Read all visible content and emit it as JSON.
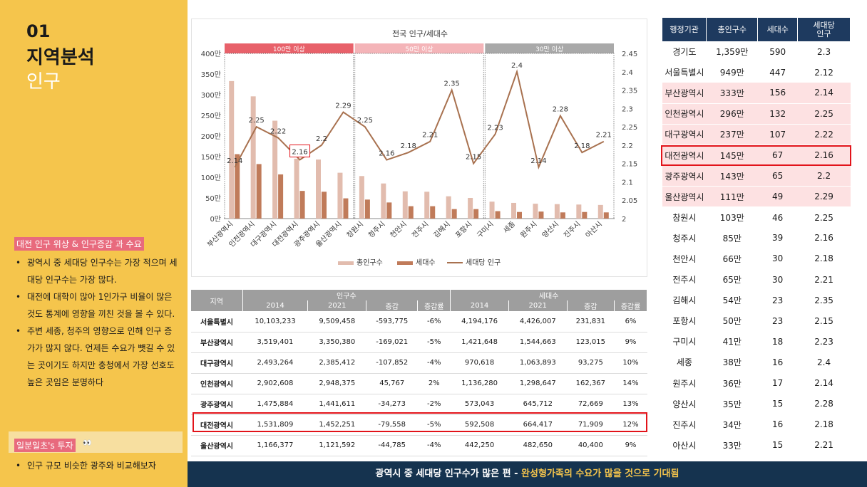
{
  "left": {
    "number": "01",
    "title": "지역분석",
    "subtitle": "인구",
    "issue_label": "대전 인구 위상 & 인구증감 과 수요",
    "bullets": [
      "광역시 중 세대당 인구수는 가장 적으며 세대당 인구수는 가장 많다.",
      "대전에 대학이 많아 1인가구 비율이 많은 것도 통계에 영향을 끼친 것을 볼 수 있다.",
      "주변 세종, 청주의 영향으로 인해 인구 증가가 많지 않다. 언제든 수요가 뺏길 수 있는 곳이기도 하지만 충청에서 가장 선호도 높은 곳임은 분명하다"
    ],
    "invest_label": "일분일초's 투자",
    "invest_eyes": "👀",
    "invest_bullet": "인구 규모 비슷한 광주와 비교해보자"
  },
  "chart_data": {
    "type": "bar",
    "title": "전국 인구/세대수",
    "categories": [
      "부산광역시",
      "인천광역시",
      "대구광역시",
      "대전광역시",
      "광주광역시",
      "울산광역시",
      "창원시",
      "청주시",
      "천안시",
      "전주시",
      "김해시",
      "포항시",
      "구미시",
      "세종",
      "원주시",
      "양산시",
      "진주시",
      "아산시"
    ],
    "series": [
      {
        "name": "총인구수",
        "values": [
          333,
          296,
          237,
          145,
          143,
          111,
          103,
          85,
          66,
          65,
          54,
          50,
          41,
          38,
          36,
          35,
          34,
          33
        ],
        "color": "#e2bcae"
      },
      {
        "name": "세대수",
        "values": [
          156,
          132,
          107,
          67,
          65,
          49,
          46,
          39,
          30,
          30,
          23,
          23,
          18,
          16,
          17,
          15,
          16,
          15
        ],
        "color": "#c07b5a"
      },
      {
        "name": "세대당 인구",
        "type": "line",
        "axis": "right",
        "values": [
          2.14,
          2.25,
          2.22,
          2.16,
          2.2,
          2.29,
          2.25,
          2.16,
          2.18,
          2.21,
          2.35,
          2.15,
          2.23,
          2.4,
          2.14,
          2.28,
          2.18,
          2.21
        ],
        "labels": [
          "2.14",
          "2.25",
          "2.22",
          "2.16",
          "2.2",
          "2.29",
          "2.25",
          "2.16",
          "2.18",
          "2.21",
          "2.35",
          "2.15",
          "2.23",
          "2.4",
          "2.14",
          "2.28",
          "2.18",
          "2.21"
        ],
        "color": "#a8714f"
      }
    ],
    "ylim": [
      0,
      400
    ],
    "yticks": [
      "0만",
      "50만",
      "100만",
      "150만",
      "200만",
      "250만",
      "300만",
      "350만",
      "400만"
    ],
    "y2lim": [
      2,
      2.45
    ],
    "y2ticks": [
      "2",
      "2.05",
      "2.1",
      "2.15",
      "2.2",
      "2.25",
      "2.3",
      "2.35",
      "2.4",
      "2.45"
    ],
    "groups": [
      {
        "label": "100만 이상",
        "from": 0,
        "to": 5,
        "color": "#e8616a"
      },
      {
        "label": "50만 이상",
        "from": 6,
        "to": 11,
        "color": "#f4b4b8"
      },
      {
        "label": "30만 이상",
        "from": 12,
        "to": 17,
        "color": "#a9a9a9"
      }
    ],
    "highlight_index": 3,
    "legend": [
      "총인구수",
      "세대수",
      "세대당 인구"
    ],
    "legend_position": "bottom"
  },
  "bottom_table": {
    "region_header": "지역",
    "group1": "인구수",
    "group2": "세대수",
    "subheaders": [
      "2014",
      "2021",
      "증감",
      "증감률",
      "2014",
      "2021",
      "증감",
      "증감률"
    ],
    "rows": [
      [
        "서울특별시",
        "10,103,233",
        "9,509,458",
        "-593,775",
        "-6%",
        "4,194,176",
        "4,426,007",
        "231,831",
        "6%"
      ],
      [
        "부산광역시",
        "3,519,401",
        "3,350,380",
        "-169,021",
        "-5%",
        "1,421,648",
        "1,544,663",
        "123,015",
        "9%"
      ],
      [
        "대구광역시",
        "2,493,264",
        "2,385,412",
        "-107,852",
        "-4%",
        "970,618",
        "1,063,893",
        "93,275",
        "10%"
      ],
      [
        "인천광역시",
        "2,902,608",
        "2,948,375",
        "45,767",
        "2%",
        "1,136,280",
        "1,298,647",
        "162,367",
        "14%"
      ],
      [
        "광주광역시",
        "1,475,884",
        "1,441,611",
        "-34,273",
        "-2%",
        "573,043",
        "645,712",
        "72,669",
        "13%"
      ],
      [
        "대전광역시",
        "1,531,809",
        "1,452,251",
        "-79,558",
        "-5%",
        "592,508",
        "664,417",
        "71,909",
        "12%"
      ],
      [
        "울산광역시",
        "1,166,377",
        "1,121,592",
        "-44,785",
        "-4%",
        "442,250",
        "482,650",
        "40,400",
        "9%"
      ]
    ]
  },
  "right_table": {
    "headers": [
      "행정기관",
      "총인구수",
      "세대수",
      "세대당\n인구"
    ],
    "rows": [
      [
        "경기도",
        "1,359만",
        "590",
        "2.3"
      ],
      [
        "서울특별시",
        "949만",
        "447",
        "2.12"
      ],
      [
        "부산광역시",
        "333만",
        "156",
        "2.14"
      ],
      [
        "인천광역시",
        "296만",
        "132",
        "2.25"
      ],
      [
        "대구광역시",
        "237만",
        "107",
        "2.22"
      ],
      [
        "대전광역시",
        "145만",
        "67",
        "2.16"
      ],
      [
        "광주광역시",
        "143만",
        "65",
        "2.2"
      ],
      [
        "울산광역시",
        "111만",
        "49",
        "2.29"
      ],
      [
        "창원시",
        "103만",
        "46",
        "2.25"
      ],
      [
        "청주시",
        "85만",
        "39",
        "2.16"
      ],
      [
        "천안시",
        "66만",
        "30",
        "2.18"
      ],
      [
        "전주시",
        "65만",
        "30",
        "2.21"
      ],
      [
        "김해시",
        "54만",
        "23",
        "2.35"
      ],
      [
        "포항시",
        "50만",
        "23",
        "2.15"
      ],
      [
        "구미시",
        "41만",
        "18",
        "2.23"
      ],
      [
        "세종",
        "38만",
        "16",
        "2.4"
      ],
      [
        "원주시",
        "36만",
        "17",
        "2.14"
      ],
      [
        "양산시",
        "35만",
        "15",
        "2.28"
      ],
      [
        "진주시",
        "34만",
        "16",
        "2.18"
      ],
      [
        "아산시",
        "33만",
        "15",
        "2.21"
      ]
    ]
  },
  "footer": {
    "text_a": "광역시 중 세대당 인구수가 많은 편 - ",
    "text_b": "완성형가족의 수요가 많을 것으로 기대됨"
  },
  "colors": {
    "left_panel": "#f5c54c",
    "navy": "#1e3a5f",
    "highlight": "#e2131a",
    "pink_row": "#fde1e2"
  }
}
